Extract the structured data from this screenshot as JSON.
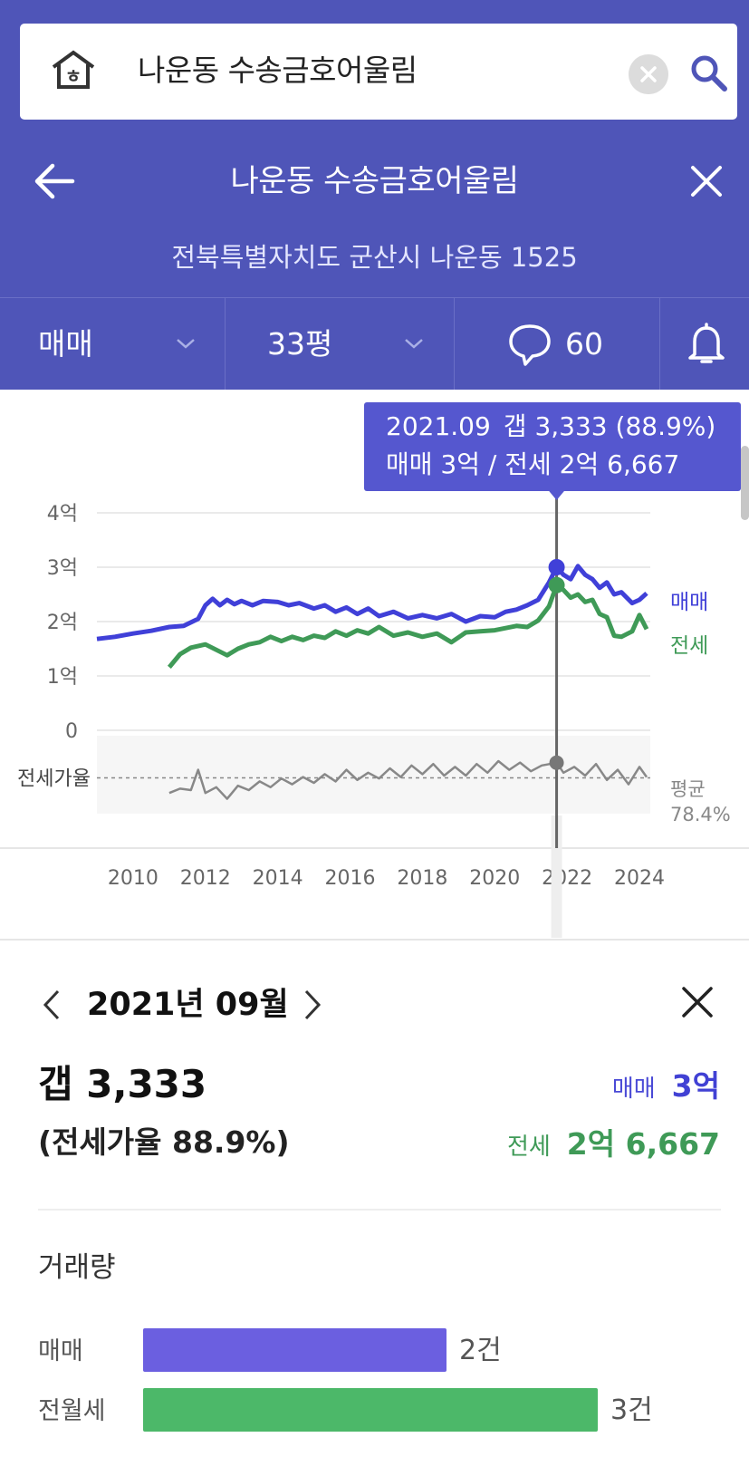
{
  "search": {
    "query": "나운동 수송금호어울림"
  },
  "header": {
    "title": "나운동 수송금호어울림",
    "address": "전북특별자치도 군산시 나운동 1525"
  },
  "filters": {
    "deal_type": "매매",
    "size": "33평",
    "comment_count": "60"
  },
  "tooltip": {
    "date": "2021.09",
    "gap": "갭 3,333 (88.9%)",
    "prices": "매매 3억 / 전세 2억 6,667"
  },
  "chart_data": {
    "type": "line",
    "x_ticks": [
      "2010",
      "2012",
      "2014",
      "2016",
      "2018",
      "2020",
      "2022",
      "2024"
    ],
    "y_ticks": [
      "4억",
      "3억",
      "2억",
      "1억",
      "0"
    ],
    "ylim": [
      0,
      4
    ],
    "y_unit": "억",
    "ratio_label": "전세가율",
    "avg_label": "평균",
    "avg_value": "78.4%",
    "highlight_x": 2021.71,
    "series": [
      {
        "name": "매매",
        "color": "#4040d8",
        "points": [
          [
            2009.0,
            1.68
          ],
          [
            2009.5,
            1.72
          ],
          [
            2010.0,
            1.78
          ],
          [
            2010.5,
            1.83
          ],
          [
            2011.0,
            1.9
          ],
          [
            2011.4,
            1.92
          ],
          [
            2011.8,
            2.05
          ],
          [
            2012.0,
            2.3
          ],
          [
            2012.2,
            2.42
          ],
          [
            2012.4,
            2.3
          ],
          [
            2012.6,
            2.4
          ],
          [
            2012.8,
            2.32
          ],
          [
            2013.0,
            2.38
          ],
          [
            2013.3,
            2.3
          ],
          [
            2013.6,
            2.38
          ],
          [
            2014.0,
            2.36
          ],
          [
            2014.3,
            2.3
          ],
          [
            2014.6,
            2.34
          ],
          [
            2015.0,
            2.24
          ],
          [
            2015.3,
            2.3
          ],
          [
            2015.6,
            2.18
          ],
          [
            2015.9,
            2.26
          ],
          [
            2016.2,
            2.14
          ],
          [
            2016.5,
            2.24
          ],
          [
            2016.8,
            2.1
          ],
          [
            2017.2,
            2.18
          ],
          [
            2017.6,
            2.06
          ],
          [
            2018.0,
            2.12
          ],
          [
            2018.4,
            2.06
          ],
          [
            2018.8,
            2.14
          ],
          [
            2019.2,
            2.0
          ],
          [
            2019.6,
            2.1
          ],
          [
            2020.0,
            2.08
          ],
          [
            2020.3,
            2.18
          ],
          [
            2020.6,
            2.22
          ],
          [
            2020.9,
            2.3
          ],
          [
            2021.2,
            2.4
          ],
          [
            2021.5,
            2.72
          ],
          [
            2021.71,
            3.0
          ],
          [
            2021.9,
            2.86
          ],
          [
            2022.1,
            2.78
          ],
          [
            2022.3,
            3.02
          ],
          [
            2022.5,
            2.86
          ],
          [
            2022.7,
            2.78
          ],
          [
            2022.9,
            2.62
          ],
          [
            2023.1,
            2.72
          ],
          [
            2023.3,
            2.5
          ],
          [
            2023.5,
            2.54
          ],
          [
            2023.8,
            2.34
          ],
          [
            2024.0,
            2.4
          ],
          [
            2024.2,
            2.52
          ]
        ]
      },
      {
        "name": "전세",
        "color": "#3f9a57",
        "points": [
          [
            2011.0,
            1.16
          ],
          [
            2011.3,
            1.4
          ],
          [
            2011.6,
            1.52
          ],
          [
            2012.0,
            1.58
          ],
          [
            2012.3,
            1.48
          ],
          [
            2012.6,
            1.38
          ],
          [
            2012.9,
            1.5
          ],
          [
            2013.2,
            1.58
          ],
          [
            2013.5,
            1.62
          ],
          [
            2013.8,
            1.72
          ],
          [
            2014.1,
            1.64
          ],
          [
            2014.4,
            1.72
          ],
          [
            2014.7,
            1.66
          ],
          [
            2015.0,
            1.74
          ],
          [
            2015.3,
            1.7
          ],
          [
            2015.6,
            1.82
          ],
          [
            2015.9,
            1.74
          ],
          [
            2016.2,
            1.84
          ],
          [
            2016.5,
            1.78
          ],
          [
            2016.8,
            1.9
          ],
          [
            2017.2,
            1.74
          ],
          [
            2017.6,
            1.8
          ],
          [
            2018.0,
            1.72
          ],
          [
            2018.4,
            1.78
          ],
          [
            2018.8,
            1.62
          ],
          [
            2019.2,
            1.8
          ],
          [
            2019.6,
            1.82
          ],
          [
            2020.0,
            1.84
          ],
          [
            2020.3,
            1.88
          ],
          [
            2020.6,
            1.92
          ],
          [
            2020.9,
            1.9
          ],
          [
            2021.2,
            2.02
          ],
          [
            2021.5,
            2.28
          ],
          [
            2021.71,
            2.67
          ],
          [
            2021.9,
            2.58
          ],
          [
            2022.1,
            2.44
          ],
          [
            2022.3,
            2.5
          ],
          [
            2022.5,
            2.36
          ],
          [
            2022.7,
            2.4
          ],
          [
            2022.9,
            2.14
          ],
          [
            2023.1,
            2.08
          ],
          [
            2023.3,
            1.74
          ],
          [
            2023.5,
            1.72
          ],
          [
            2023.8,
            1.82
          ],
          [
            2024.0,
            2.12
          ],
          [
            2024.2,
            1.86
          ]
        ]
      },
      {
        "name": "전세가율",
        "color": "#888888",
        "points": [
          [
            2011.0,
            68
          ],
          [
            2011.3,
            71
          ],
          [
            2011.6,
            70
          ],
          [
            2011.8,
            84
          ],
          [
            2012.0,
            68
          ],
          [
            2012.3,
            72
          ],
          [
            2012.6,
            64
          ],
          [
            2012.9,
            73
          ],
          [
            2013.2,
            70
          ],
          [
            2013.5,
            76
          ],
          [
            2013.8,
            72
          ],
          [
            2014.1,
            78
          ],
          [
            2014.4,
            74
          ],
          [
            2014.7,
            79
          ],
          [
            2015.0,
            75
          ],
          [
            2015.3,
            81
          ],
          [
            2015.6,
            76
          ],
          [
            2015.9,
            84
          ],
          [
            2016.2,
            77
          ],
          [
            2016.5,
            82
          ],
          [
            2016.8,
            78
          ],
          [
            2017.1,
            85
          ],
          [
            2017.4,
            79
          ],
          [
            2017.7,
            87
          ],
          [
            2018.0,
            81
          ],
          [
            2018.3,
            88
          ],
          [
            2018.6,
            80
          ],
          [
            2018.9,
            86
          ],
          [
            2019.2,
            80
          ],
          [
            2019.5,
            88
          ],
          [
            2019.8,
            82
          ],
          [
            2020.1,
            90
          ],
          [
            2020.4,
            84
          ],
          [
            2020.7,
            89
          ],
          [
            2021.0,
            83
          ],
          [
            2021.3,
            87
          ],
          [
            2021.71,
            88.9
          ],
          [
            2021.9,
            82
          ],
          [
            2022.2,
            86
          ],
          [
            2022.5,
            80
          ],
          [
            2022.8,
            88
          ],
          [
            2023.1,
            77
          ],
          [
            2023.4,
            84
          ],
          [
            2023.7,
            74
          ],
          [
            2024.0,
            86
          ],
          [
            2024.2,
            79
          ]
        ]
      }
    ]
  },
  "detail": {
    "month_label": "2021년 09월",
    "gap": "갭 3,333",
    "ratio": "(전세가율 88.9%)",
    "sale_label": "매매",
    "sale_value": "3억",
    "jeonse_label": "전세",
    "jeonse_value": "2억 6,667",
    "volume_title": "거래량",
    "volume": [
      {
        "label": "매매",
        "count": "2건",
        "n": 2,
        "color": "#6b5fe0"
      },
      {
        "label": "전월세",
        "count": "3건",
        "n": 3,
        "color": "#4cb869"
      }
    ]
  }
}
